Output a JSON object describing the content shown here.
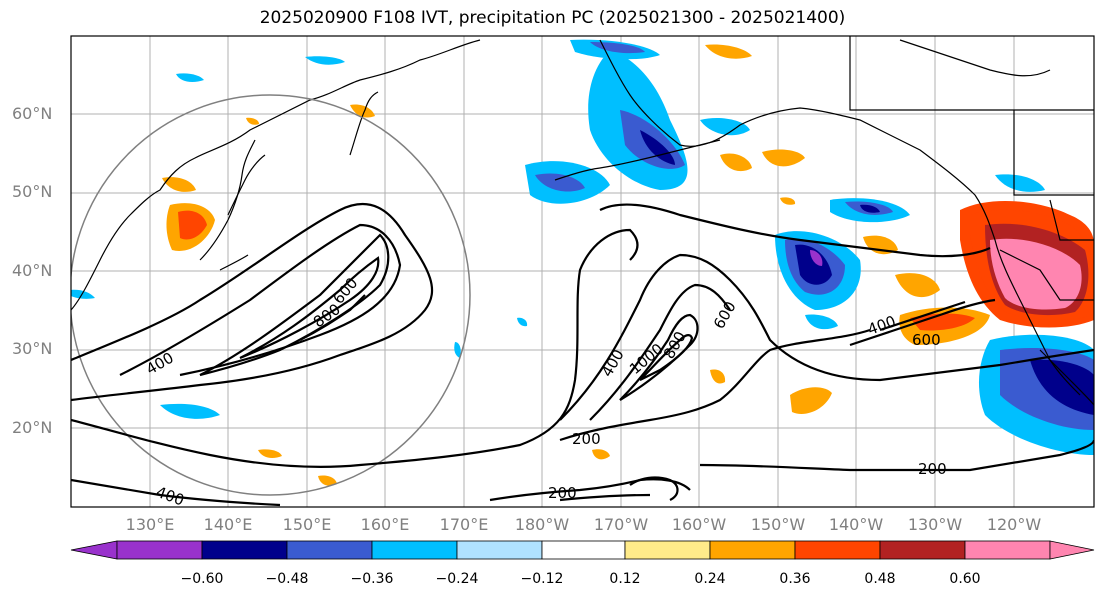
{
  "title": "2025020900 F108 IVT, precipitation PC (2025021300 - 2025021400)",
  "lat_labels": [
    "60°N",
    "50°N",
    "40°N",
    "30°N",
    "20°N"
  ],
  "lon_labels": [
    "130°E",
    "140°E",
    "150°E",
    "160°E",
    "170°E",
    "180°W",
    "170°W",
    "160°W",
    "150°W",
    "140°W",
    "130°W",
    "120°W"
  ],
  "contour_labels": [
    "400",
    "600",
    "800",
    "400",
    "1000",
    "800",
    "600",
    "200",
    "200",
    "400",
    "600",
    "200",
    "400"
  ],
  "colorbar": {
    "ticks": [
      "−0.60",
      "−0.48",
      "−0.36",
      "−0.24",
      "−0.12",
      "0.12",
      "0.24",
      "0.36",
      "0.48",
      "0.60"
    ],
    "colors": [
      "#9932cc",
      "#00008b",
      "#3a5bd0",
      "#00bfff",
      "#b0e2ff",
      "#ffffff",
      "#ffeb8a",
      "#ffa500",
      "#ff4500",
      "#b22222",
      "#ff85b0",
      "#ff85b0"
    ]
  }
}
